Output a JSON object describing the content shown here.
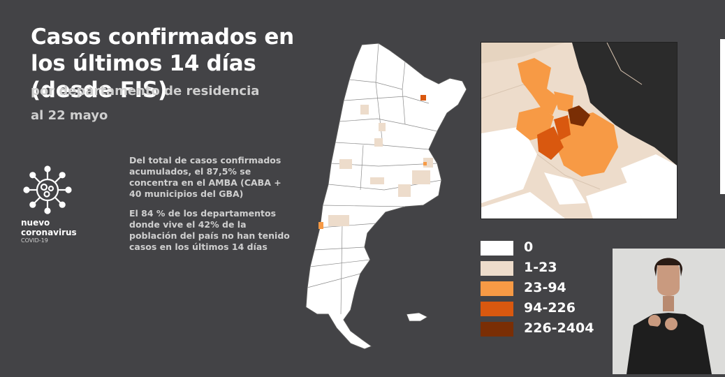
{
  "title": "Casos confirmados en los últimos 14 días (desde FIS)",
  "subtitle": "por departamento de residencia",
  "date": "al 22 mayo",
  "notes": [
    "Del total de casos confirmados acumulados, el 87,5% se concentra en el AMBA (CABA + 40 municipios del GBA)",
    "El 84 % de los departamentos donde vive el 42% de la población del país no han tenido casos en los últimos 14 días"
  ],
  "brand": {
    "line1": "nuevo",
    "line2": "coronavirus",
    "line3": "COVID-19",
    "icon": "virus-icon"
  },
  "legend": {
    "items": [
      {
        "label": "0",
        "color": "#ffffff"
      },
      {
        "label": "1-23",
        "color": "#eddccb"
      },
      {
        "label": "23-94",
        "color": "#f79a45"
      },
      {
        "label": "94-226",
        "color": "#d9580f"
      },
      {
        "label": "226-2404",
        "color": "#7a2e05"
      }
    ]
  },
  "colors": {
    "background": "#434346",
    "border": "#333333"
  }
}
